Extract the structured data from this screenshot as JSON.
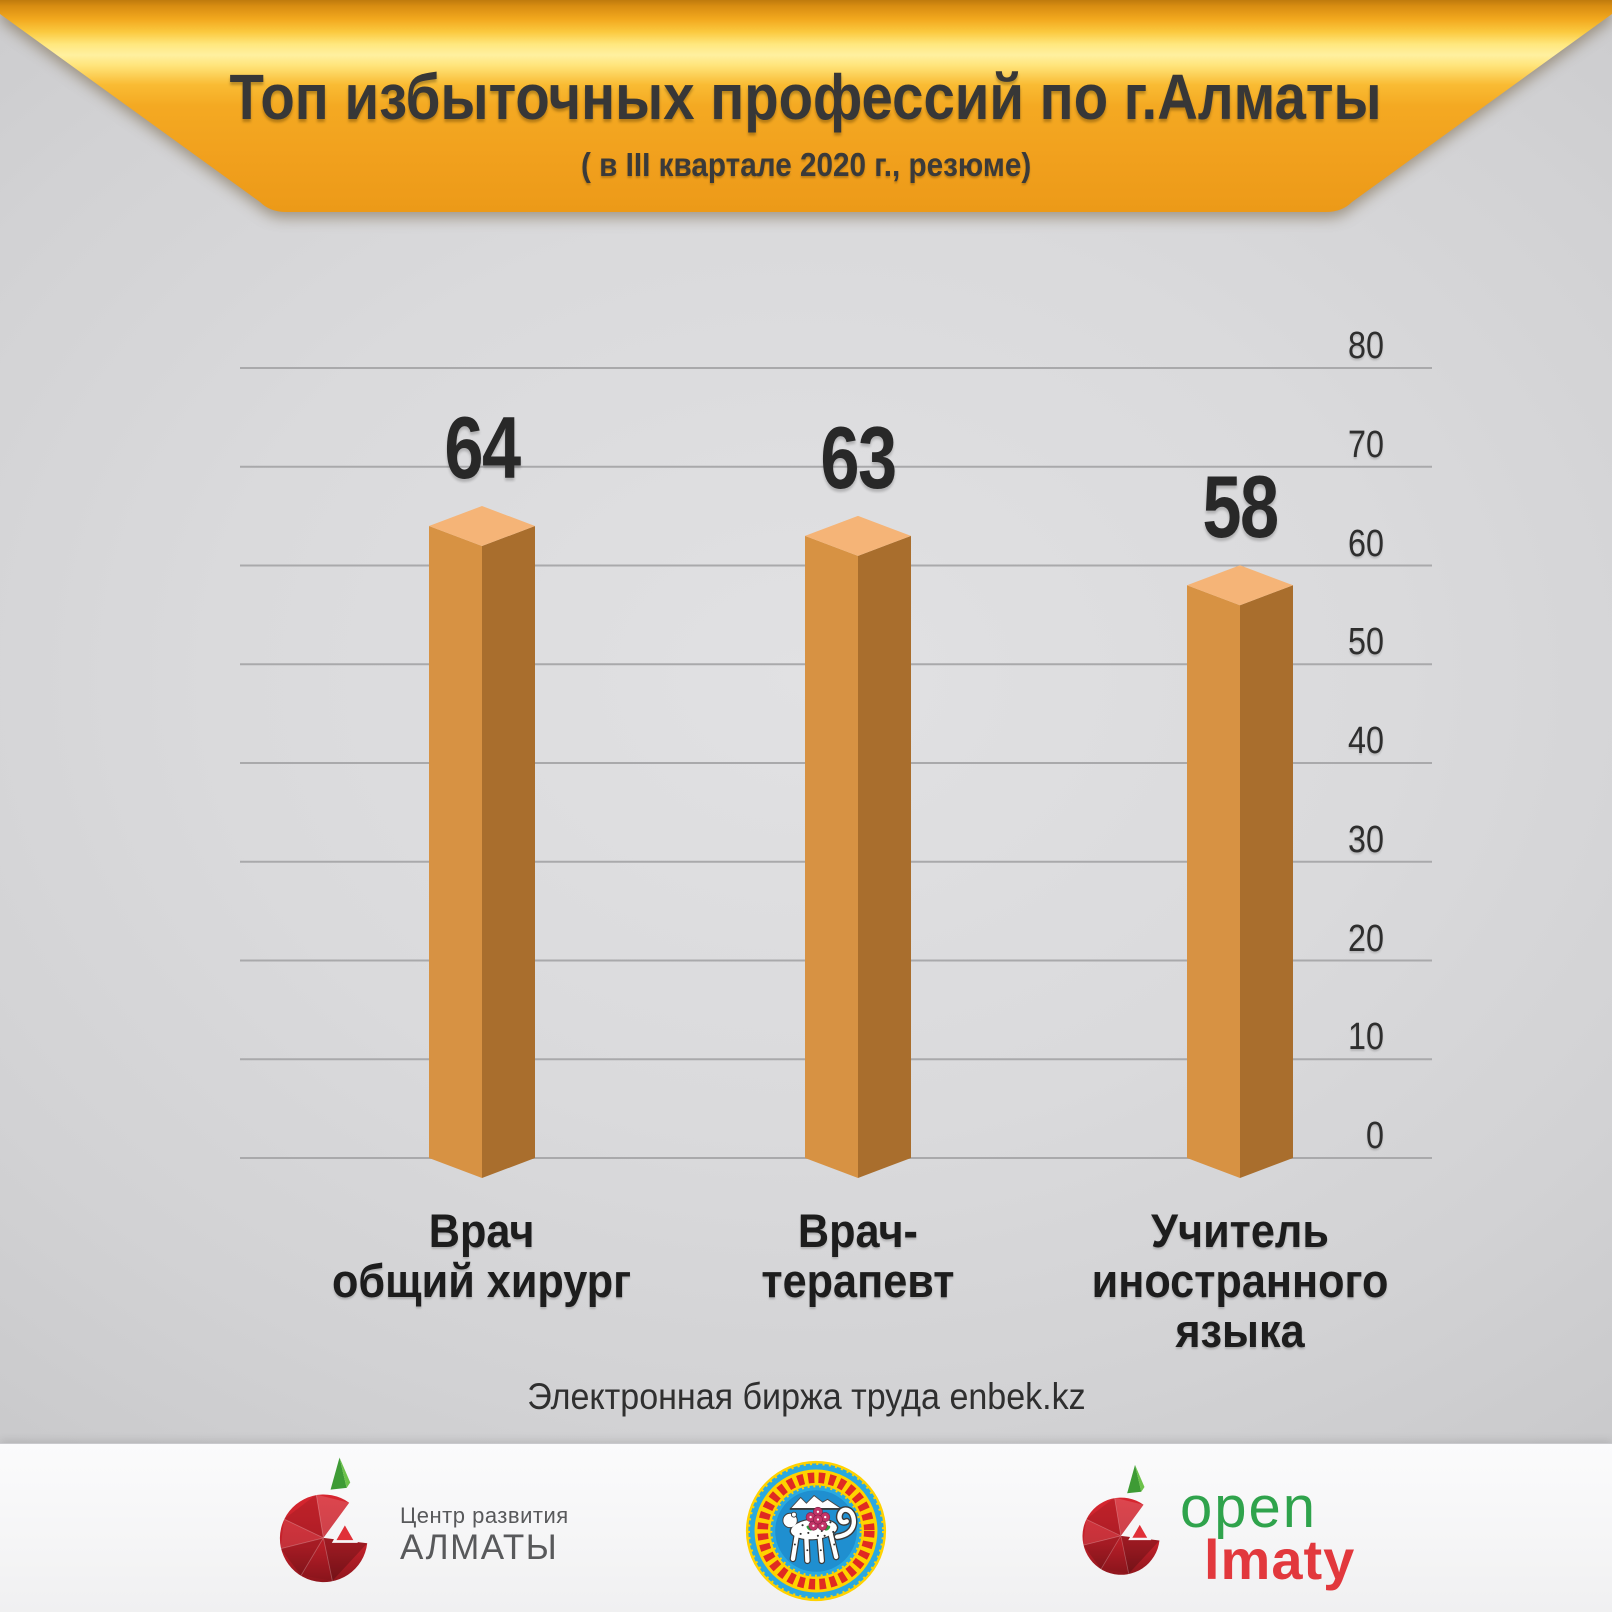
{
  "header": {
    "title": "Топ избыточных профессий по г.Алматы",
    "subtitle": "( в III квартале 2020 г., резюме)"
  },
  "chart_data": {
    "type": "bar",
    "title": "Топ избыточных профессий по г.Алматы",
    "subtitle": "( в III квартале 2020 г., резюме)",
    "categories": [
      "Врач общий хирург",
      "Врач-терапевт",
      "Учитель иностранного языка"
    ],
    "category_lines": [
      [
        "Врач",
        "общий хирург"
      ],
      [
        "Врач-",
        "терапевт"
      ],
      [
        "Учитель",
        "иностранного языка"
      ]
    ],
    "values": [
      64,
      63,
      58
    ],
    "xlabel": "",
    "ylabel": "",
    "ylim": [
      0,
      80
    ],
    "yticks": [
      80,
      70,
      60,
      50,
      40,
      30,
      20,
      10,
      0
    ],
    "grid": true,
    "legend": false,
    "bar_style": "3d-column",
    "bar_color_left": "#d79243",
    "bar_color_right": "#a96e2d",
    "bar_color_top": "#f5b477"
  },
  "source": {
    "label": "Электронная биржа труда enbek.kz"
  },
  "footer": {
    "dev_center": {
      "line1": "Центр развития",
      "line2": "АЛМАТЫ"
    },
    "emblem": "Герб города Алматы",
    "open_almaty": {
      "line1": "open",
      "line2": "lmaty"
    }
  },
  "colors": {
    "banner_gold": "#f4a81f",
    "banner_highlight": "#fff0a0",
    "background": "#d8d8da",
    "grid_line": "#a9a9ab",
    "bar_left": "#d79243",
    "bar_right": "#a96e2d",
    "bar_top": "#f5b477",
    "title_text": "#373737",
    "value_text": "#282828",
    "category_text": "#1d1d1d",
    "logo_gray": "#58595b",
    "open_green": "#2fa34c",
    "open_red": "#e2383d",
    "emblem_blue_ring": "#2aa9e0",
    "emblem_blue_disc": "#1f8fd0",
    "emblem_yellow": "#ffd200",
    "emblem_ornament_red": "#e02a22",
    "blossom_pink": "#c23467"
  }
}
